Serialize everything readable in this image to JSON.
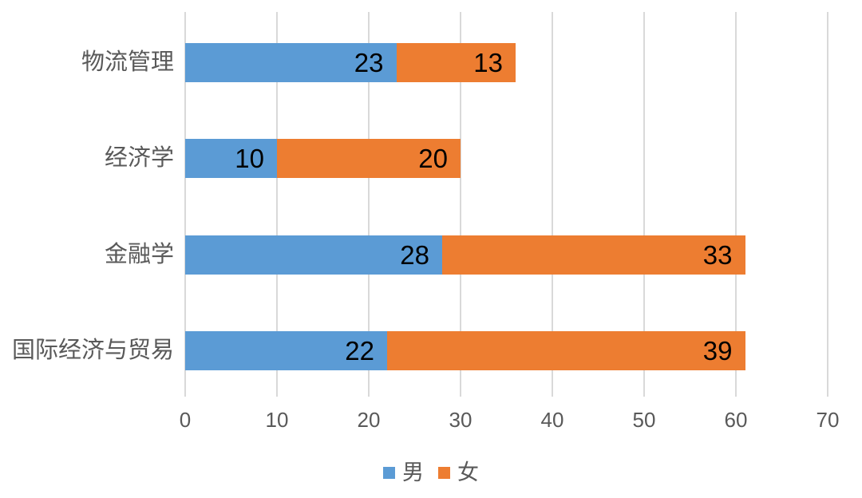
{
  "chart_data": {
    "type": "bar",
    "orientation": "horizontal",
    "stacked": true,
    "title": "",
    "xlabel": "",
    "ylabel": "",
    "categories": [
      "物流管理",
      "经济学",
      "金融学",
      "国际经济与贸易"
    ],
    "categories_order": "top-to-bottom",
    "series": [
      {
        "key": "male",
        "name": "男",
        "color": "#5B9BD5",
        "values": [
          23,
          10,
          28,
          22
        ]
      },
      {
        "key": "female",
        "name": "女",
        "color": "#ED7D31",
        "values": [
          13,
          20,
          33,
          39
        ]
      }
    ],
    "totals": [
      36,
      30,
      61,
      61
    ],
    "data_labels": "inside-end",
    "data_label_color": "#000000",
    "x_ticks": [
      0,
      10,
      20,
      30,
      40,
      50,
      60,
      70
    ],
    "xlim": [
      0,
      70
    ],
    "grid": "vertical",
    "gridline_color": "#d9d9d9",
    "axis_text_color": "#595959",
    "legend_position": "bottom-center",
    "background_color": "#ffffff"
  }
}
